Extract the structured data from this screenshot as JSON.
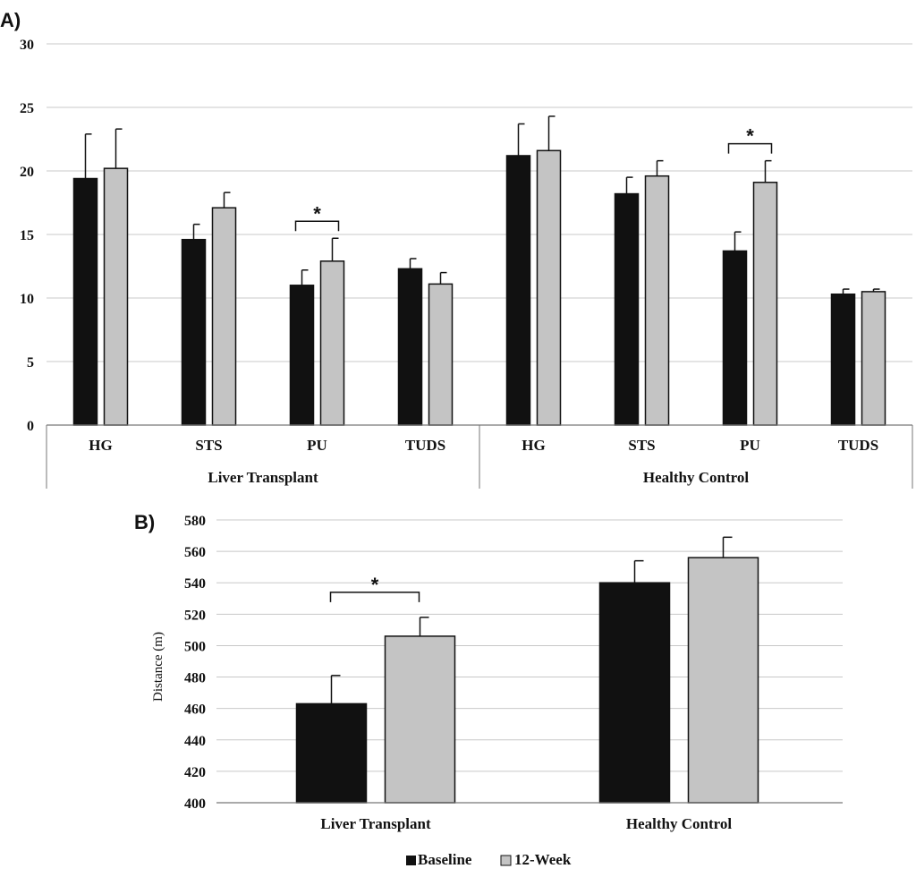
{
  "colors": {
    "baseline": "#111111",
    "week12": "#c4c4c4",
    "grid": "#c8c8c8",
    "axis": "#777777"
  },
  "legend": {
    "baseline": "Baseline",
    "week12": "12-Week"
  },
  "significance_marker": "*",
  "chart_data": [
    {
      "panel_label": "A)",
      "type": "bar",
      "ylim": [
        0,
        30
      ],
      "yticks": [
        0,
        5,
        10,
        15,
        20,
        25,
        30
      ],
      "grid": true,
      "groups": [
        {
          "label": "Liver Transplant",
          "categories": [
            "HG",
            "STS",
            "PU",
            "TUDS"
          ]
        },
        {
          "label": "Healthy Control",
          "categories": [
            "HG",
            "STS",
            "PU",
            "TUDS"
          ]
        }
      ],
      "series": [
        {
          "name": "Baseline",
          "values": [
            19.4,
            14.6,
            11.0,
            12.3,
            21.2,
            18.2,
            13.7,
            10.3
          ],
          "errors": [
            3.5,
            1.2,
            1.2,
            0.8,
            2.5,
            1.3,
            1.5,
            0.4
          ]
        },
        {
          "name": "12-Week",
          "values": [
            20.2,
            17.1,
            12.9,
            11.1,
            21.6,
            19.6,
            19.1,
            10.5
          ],
          "errors": [
            3.1,
            1.2,
            1.8,
            0.9,
            2.7,
            1.2,
            1.7,
            0.2
          ]
        }
      ],
      "significant": [
        2,
        6
      ]
    },
    {
      "panel_label": "B)",
      "type": "bar",
      "ylabel": "Distance (m)",
      "ylim": [
        400,
        580
      ],
      "yticks": [
        400,
        420,
        440,
        460,
        480,
        500,
        520,
        540,
        560,
        580
      ],
      "grid": true,
      "categories": [
        "Liver Transplant",
        "Healthy Control"
      ],
      "series": [
        {
          "name": "Baseline",
          "values": [
            463,
            540
          ],
          "errors": [
            18,
            14
          ]
        },
        {
          "name": "12-Week",
          "values": [
            506,
            556
          ],
          "errors": [
            12,
            13
          ]
        }
      ],
      "significant": [
        0
      ]
    }
  ]
}
